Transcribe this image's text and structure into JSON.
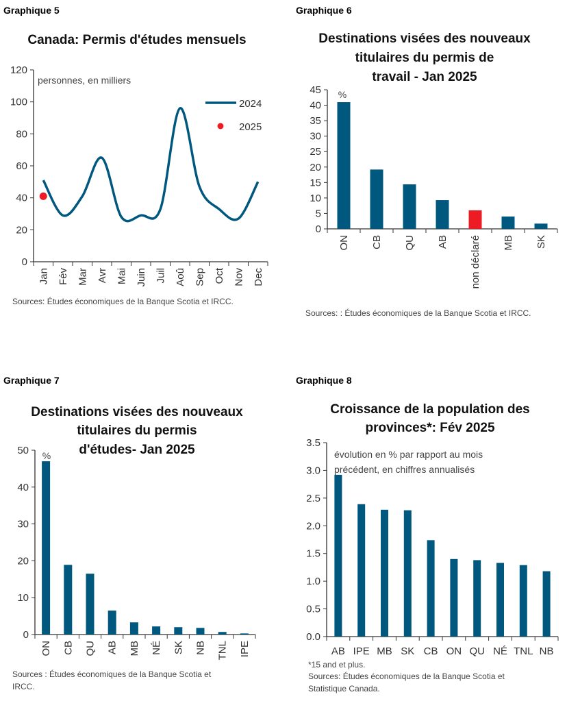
{
  "colors": {
    "primary": "#00587f",
    "highlight": "#ed1c24",
    "axis": "#333333"
  },
  "chart_data": [
    {
      "id": "g5",
      "type": "line",
      "label": "Graphique 5",
      "title": [
        "Canada: Permis d'études mensuels"
      ],
      "unit_note": [
        "personnes, en milliers"
      ],
      "categories": [
        "Jan",
        "Fév",
        "Mar",
        "Avr",
        "Mai",
        "Juin",
        "Juil",
        "Aoû",
        "Sep",
        "Oct",
        "Nov",
        "Dec"
      ],
      "series": [
        {
          "name": "2024",
          "style": "line",
          "values": [
            51,
            29,
            41,
            65,
            28,
            29,
            33,
            96,
            47,
            33,
            27,
            50
          ]
        },
        {
          "name": "2025",
          "style": "point",
          "values": [
            41,
            null,
            null,
            null,
            null,
            null,
            null,
            null,
            null,
            null,
            null,
            null
          ]
        }
      ],
      "ylim": [
        0,
        120
      ],
      "yticks": [
        "0",
        "20",
        "40",
        "60",
        "80",
        "100",
        "120"
      ],
      "legend": "top-right",
      "xlabel_rotation": "vertical",
      "footnotes": [
        "Sources: Études économiques de la Banque Scotia et IRCC."
      ]
    },
    {
      "id": "g6",
      "type": "bar",
      "label": "Graphique 6",
      "title": [
        "Destinations visées des nouveaux",
        "titulaires du permis de",
        "travail - Jan 2025"
      ],
      "unit_note": [
        "%"
      ],
      "categories": [
        "ON",
        "CB",
        "QU",
        "AB",
        "non déclaré",
        "MB",
        "SK"
      ],
      "values": [
        41,
        19.2,
        14.4,
        9.3,
        6.0,
        4.0,
        1.7
      ],
      "highlight": [
        "non déclaré"
      ],
      "ylim": [
        0,
        45
      ],
      "yticks": [
        "0",
        "5",
        "10",
        "15",
        "20",
        "25",
        "30",
        "35",
        "40",
        "45"
      ],
      "xlabel_rotation": "vertical",
      "footnotes": [
        "Sources: : Études économiques de la Banque Scotia et IRCC."
      ]
    },
    {
      "id": "g7",
      "type": "bar",
      "label": "Graphique 7",
      "title": [
        "Destinations visées des nouveaux",
        "titulaires du permis",
        "d'études- Jan 2025"
      ],
      "unit_note": [
        "%"
      ],
      "categories": [
        "ON",
        "CB",
        "QU",
        "AB",
        "MB",
        "NÉ",
        "SK",
        "NB",
        "TNL",
        "IPE"
      ],
      "values": [
        47,
        18.9,
        16.5,
        6.5,
        3.3,
        2.2,
        2.0,
        1.8,
        0.7,
        0.3
      ],
      "ylim": [
        0,
        50
      ],
      "yticks": [
        "0",
        "10",
        "20",
        "30",
        "40",
        "50"
      ],
      "xlabel_rotation": "vertical",
      "footnotes": [
        "Sources : Études économiques de la Banque Scotia et",
        "IRCC."
      ]
    },
    {
      "id": "g8",
      "type": "bar",
      "label": "Graphique 8",
      "title": [
        "Croissance de la population des",
        "provinces*: Fév 2025"
      ],
      "unit_note": [
        "évolution en % par rapport au mois",
        "précédent, en chiffres annualisés"
      ],
      "categories": [
        "AB",
        "IPE",
        "MB",
        "SK",
        "CB",
        "ON",
        "QU",
        "NÉ",
        "TNL",
        "NB"
      ],
      "values": [
        2.92,
        2.39,
        2.29,
        2.28,
        1.74,
        1.4,
        1.38,
        1.33,
        1.29,
        1.18
      ],
      "ylim": [
        0,
        3.5
      ],
      "yticks": [
        "0.0",
        "0.5",
        "1.0",
        "1.5",
        "2.0",
        "2.5",
        "3.0",
        "3.5"
      ],
      "xlabel_rotation": "horizontal",
      "footnotes": [
        "*15 and et plus.",
        "Sources: Études économiques de la Banque Scotia et",
        "Statistique Canada."
      ]
    }
  ]
}
